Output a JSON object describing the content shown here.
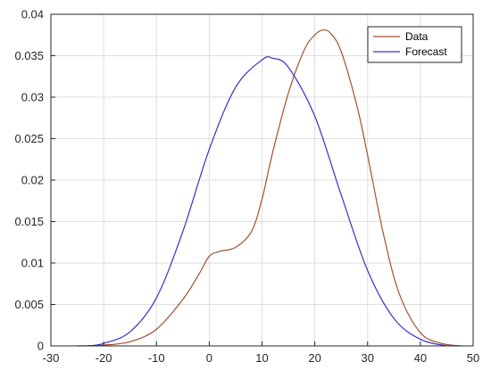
{
  "chart_data": {
    "type": "line",
    "title": "",
    "xlabel": "",
    "ylabel": "",
    "xlim": [
      -30,
      50
    ],
    "ylim": [
      0,
      0.04
    ],
    "grid": true,
    "legend_placement": "top-right",
    "x_ticks": [
      -30,
      -20,
      -10,
      0,
      10,
      20,
      30,
      40,
      50
    ],
    "x_tick_labels": [
      "-30",
      "-20",
      "-10",
      "0",
      "10",
      "20",
      "30",
      "40",
      "50"
    ],
    "y_ticks": [
      0,
      0.005,
      0.01,
      0.015,
      0.02,
      0.025,
      0.03,
      0.035,
      0.04
    ],
    "y_tick_labels": [
      "0",
      "0.005",
      "0.01",
      "0.015",
      "0.02",
      "0.025",
      "0.03",
      "0.035",
      "0.04"
    ],
    "series": [
      {
        "name": "Data",
        "color": "#a0522d",
        "x": [
          -25,
          -20,
          -15,
          -10,
          -5,
          -2,
          0,
          2,
          5,
          8,
          10,
          12,
          15,
          18,
          20,
          21.5,
          23,
          25,
          28,
          30,
          33,
          36,
          40,
          44,
          48
        ],
        "y": [
          0,
          0.0001,
          0.0005,
          0.002,
          0.0056,
          0.0086,
          0.0108,
          0.0114,
          0.0119,
          0.0138,
          0.0177,
          0.0233,
          0.0305,
          0.0357,
          0.0375,
          0.0381,
          0.0377,
          0.0355,
          0.0289,
          0.023,
          0.0135,
          0.0063,
          0.0016,
          0.0003,
          0
        ]
      },
      {
        "name": "Forecast",
        "color": "#3333cc",
        "x": [
          -23,
          -20,
          -15,
          -10,
          -5,
          0,
          5,
          10,
          12,
          15,
          20,
          25,
          30,
          35,
          40,
          45
        ],
        "y": [
          0,
          0.0003,
          0.0017,
          0.0058,
          0.0138,
          0.0237,
          0.0312,
          0.0345,
          0.0347,
          0.0336,
          0.0277,
          0.0182,
          0.0091,
          0.0033,
          0.0008,
          0
        ]
      }
    ]
  }
}
